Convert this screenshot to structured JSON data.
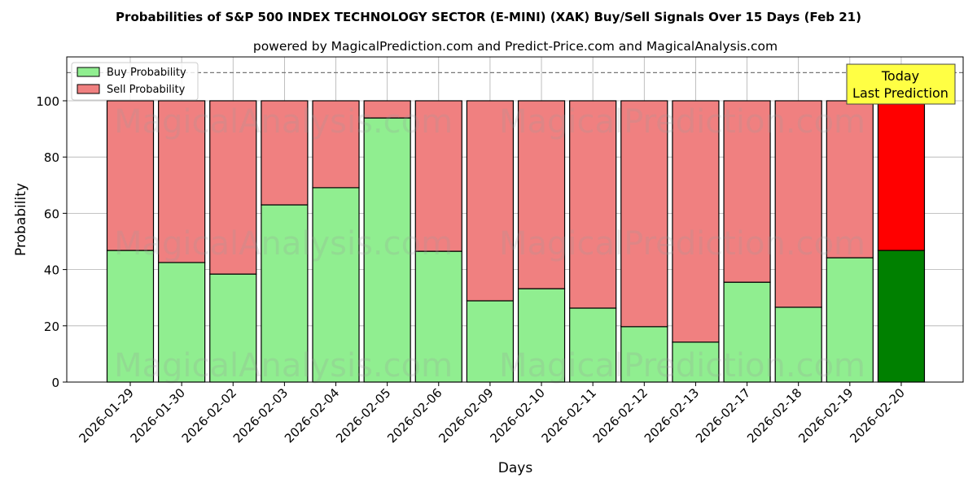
{
  "chart_data": {
    "type": "bar",
    "stacked": true,
    "title": "Probabilities of S&P 500 INDEX TECHNOLOGY SECTOR (E-MINI) (XAK) Buy/Sell Signals Over 15 Days (Feb 21)",
    "subtitle": "powered by MagicalPrediction.com and Predict-Price.com and MagicalAnalysis.com",
    "xlabel": "Days",
    "ylabel": "Probability",
    "ylim": [
      0,
      115.6
    ],
    "yticks": [
      0,
      20,
      40,
      60,
      80,
      100
    ],
    "grid": true,
    "legend_position": "top-left",
    "reference_line": 110,
    "categories": [
      "2026-01-29",
      "2026-01-30",
      "2026-02-02",
      "2026-02-03",
      "2026-02-04",
      "2026-02-05",
      "2026-02-06",
      "2026-02-09",
      "2026-02-10",
      "2026-02-11",
      "2026-02-12",
      "2026-02-13",
      "2026-02-17",
      "2026-02-18",
      "2026-02-19",
      "2026-02-20"
    ],
    "series": [
      {
        "name": "Buy Probability",
        "color": "#90ee90",
        "highlight_color": "#008000",
        "values": [
          46.8,
          42.5,
          38.4,
          63.0,
          69.1,
          93.9,
          46.5,
          28.9,
          33.2,
          26.3,
          19.7,
          14.2,
          35.5,
          26.6,
          44.2,
          46.8
        ]
      },
      {
        "name": "Sell Probability",
        "color": "#f08080",
        "highlight_color": "#ff0000",
        "values": [
          53.2,
          57.5,
          61.6,
          37.0,
          30.9,
          6.1,
          53.5,
          71.1,
          66.8,
          73.7,
          80.3,
          85.8,
          64.5,
          73.4,
          55.8,
          53.2
        ]
      }
    ],
    "annotation": {
      "line1": "Today",
      "line2": "Last Prediction",
      "color": "#ffff44"
    },
    "watermarks": [
      "MagicalAnalysis.com",
      "MagicalPrediction.com"
    ]
  }
}
